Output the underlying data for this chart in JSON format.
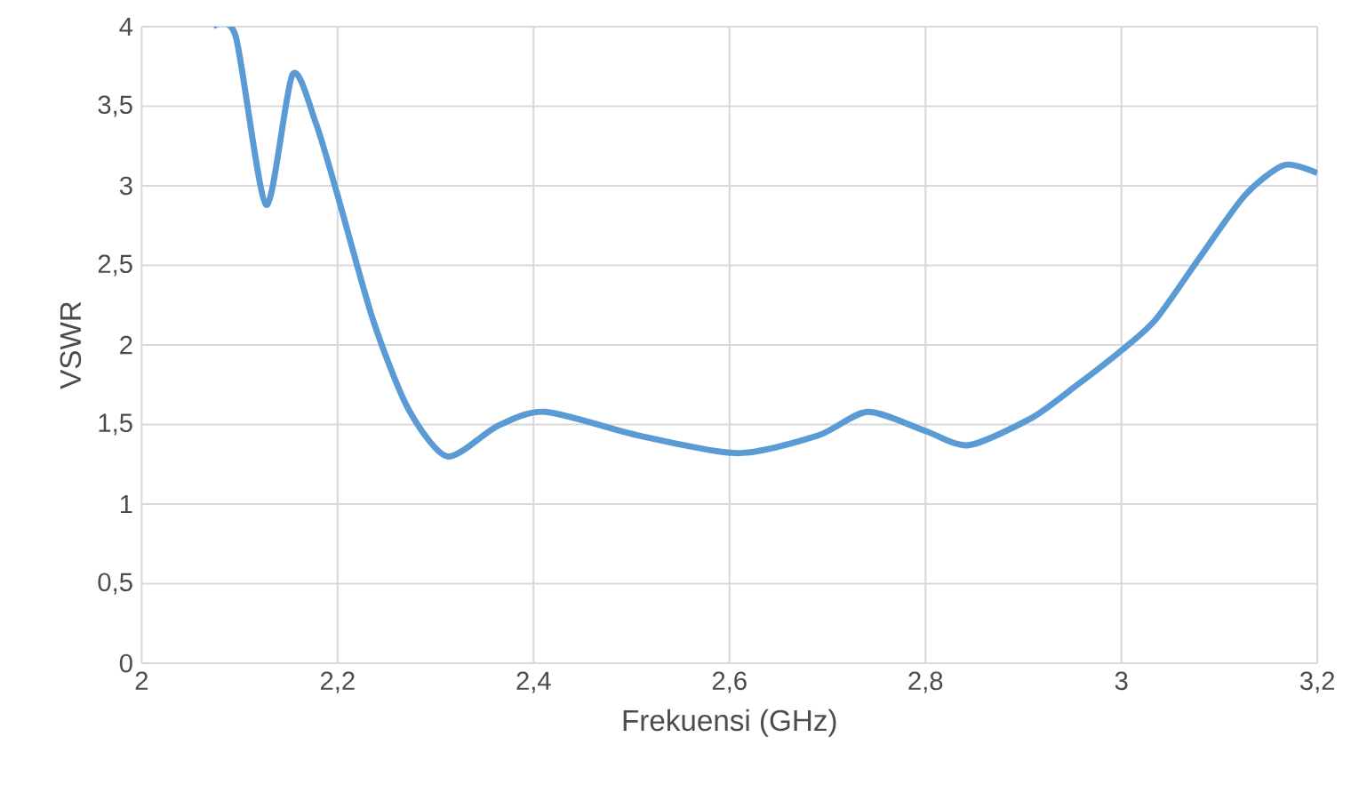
{
  "chart_data": {
    "type": "line",
    "xlabel": "Frekuensi (GHz)",
    "ylabel": "VSWR",
    "x": [
      2.073,
      2.096,
      2.127,
      2.154,
      2.178,
      2.2,
      2.236,
      2.272,
      2.312,
      2.363,
      2.412,
      2.508,
      2.608,
      2.69,
      2.741,
      2.8,
      2.844,
      2.908,
      2.953,
      2.999,
      3.035,
      3.08,
      3.126,
      3.166,
      3.2
    ],
    "series": [
      {
        "color": "#5b9bd5",
        "values": [
          4.0,
          3.94,
          2.88,
          3.7,
          3.39,
          2.94,
          2.16,
          1.6,
          1.3,
          1.49,
          1.58,
          1.43,
          1.32,
          1.43,
          1.58,
          1.46,
          1.37,
          1.54,
          1.74,
          1.96,
          2.16,
          2.55,
          2.94,
          3.13,
          3.08
        ]
      }
    ],
    "xlim": [
      2,
      3.2
    ],
    "ylim": [
      0,
      4
    ],
    "xticks": [
      2,
      {
        "value": 2.2,
        "label": "2,2"
      },
      {
        "value": 2.4,
        "label": "2,4"
      },
      {
        "value": 2.6,
        "label": "2,6"
      },
      {
        "value": 2.8,
        "label": "2,8"
      },
      3,
      {
        "value": 3.2,
        "label": "3,2"
      }
    ],
    "yticks": [
      0,
      {
        "value": 0.5,
        "label": "0,5"
      },
      1,
      {
        "value": 1.5,
        "label": "1,5"
      },
      2,
      {
        "value": 2.5,
        "label": "2,5"
      },
      3,
      {
        "value": 3.5,
        "label": "3,5"
      },
      4
    ],
    "grid": true,
    "marker": "none",
    "line_style": "solid"
  }
}
